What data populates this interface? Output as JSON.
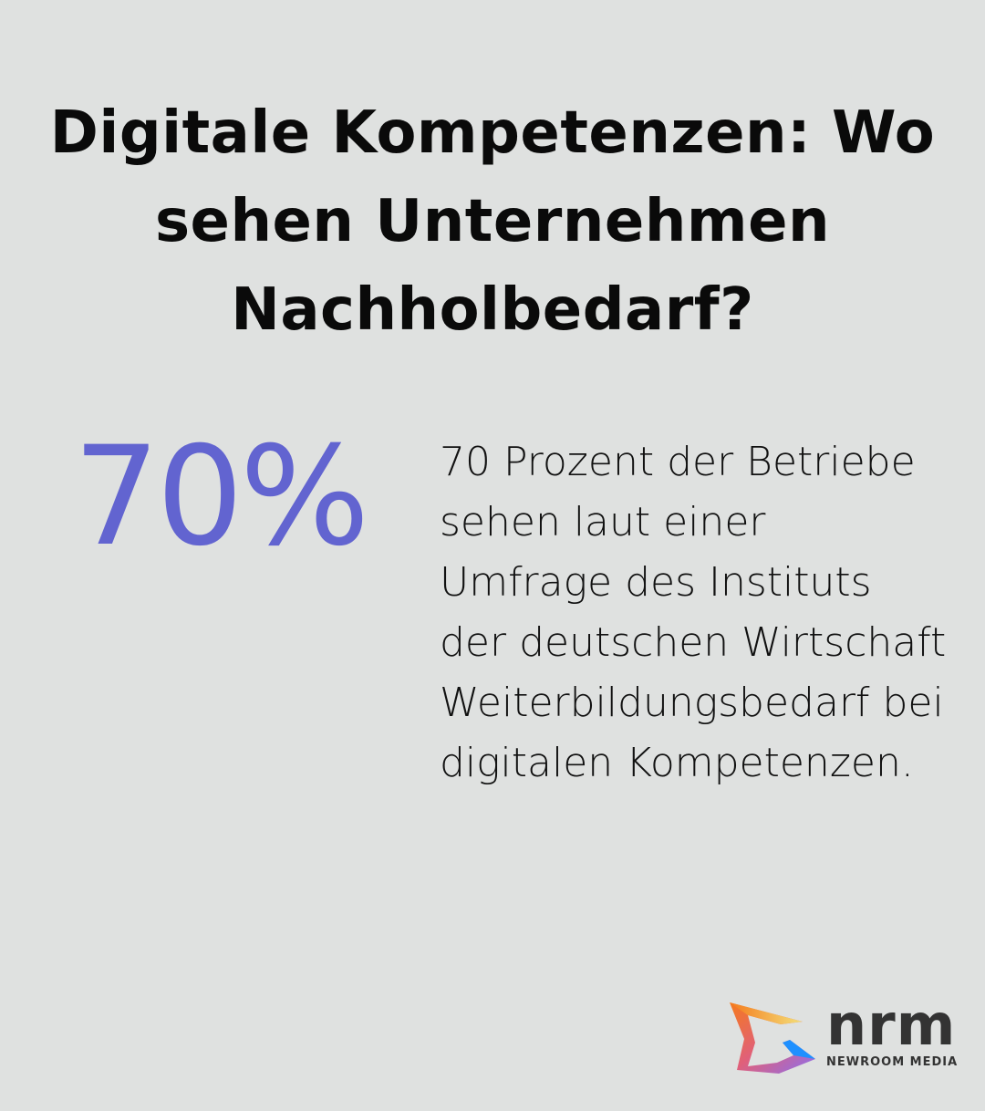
{
  "title": "Digitale Kompetenzen: Wo sehen Unternehmen Nachholbedarf?",
  "stat": {
    "value": "70%",
    "color": "#6264d0"
  },
  "description": "70 Prozent der Betriebe sehen laut einer Umfrage des Instituts der deutschen Wirtschaft Weiterbildungsbedarf bei digitalen Kompetenzen.",
  "logo": {
    "wordmark": "nrm",
    "subtitle": "NEWROOM MEDIA"
  }
}
